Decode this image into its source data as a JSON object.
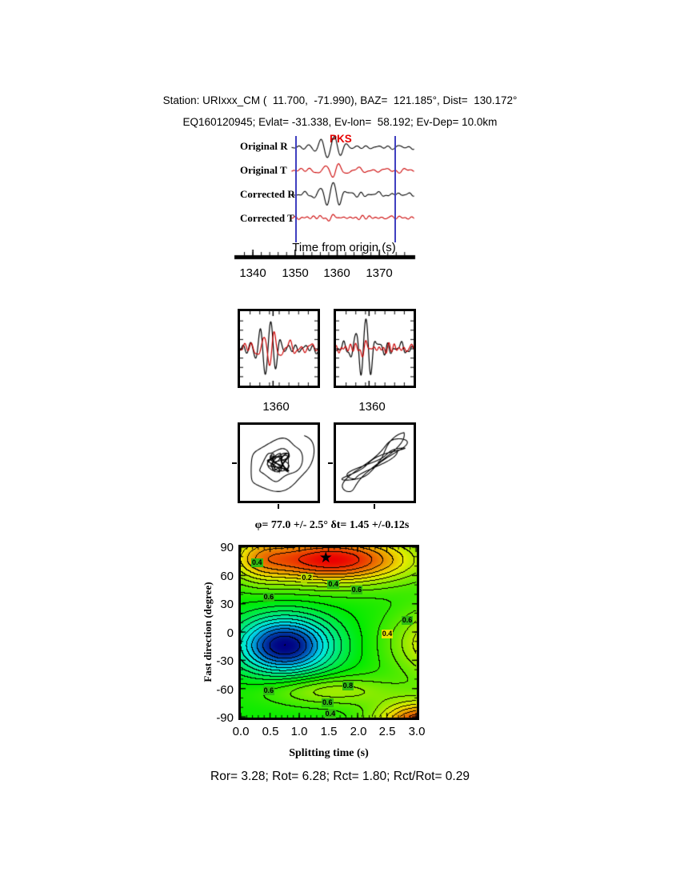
{
  "header": {
    "line1": "Station: URIxxx_CM (  11.700,  -71.990), BAZ=  121.185°, Dist=  130.172°",
    "line2": "EQ160120945; Evlat= -31.338, Ev-lon=  58.192; Ev-Dep= 10.0km"
  },
  "waveform_panel": {
    "trace_labels": [
      "Original R",
      "Original T",
      "Corrected R",
      "Corrected T"
    ],
    "phase_label": "PKS",
    "axis_title": "Time from origin (s)",
    "tick_labels": [
      "1340",
      "1350",
      "1360",
      "1370"
    ]
  },
  "zoom_panels": {
    "left_label": "1360",
    "right_label": "1360"
  },
  "contour_panel": {
    "title": "φ= 77.0 +/- 2.5° δt= 1.45 +/-0.12s",
    "xlabel": "Splitting time (s)",
    "ylabel": "Fast direction (degree)",
    "ytick_labels": [
      "90",
      "60",
      "30",
      "0",
      "-30",
      "-60",
      "-90"
    ],
    "xtick_labels": [
      "0.0",
      "0.5",
      "1.0",
      "1.5",
      "2.0",
      "2.5",
      "3.0"
    ]
  },
  "summary": "Ror= 3.28; Rot= 6.28; Rct= 1.80; Rct/Rot= 0.29",
  "colors": {
    "radial_trace": "#000000",
    "transverse_trace": "#cc0000",
    "window_line": "#4040c0",
    "phase_label": "#e60000"
  },
  "chart_data": [
    {
      "type": "line",
      "title": "PKS waveforms, radial and transverse, before and after splitting correction",
      "xlabel": "Time from origin (s)",
      "x_range": [
        1336,
        1378
      ],
      "x_ticks": [
        1340,
        1350,
        1360,
        1370
      ],
      "phase_arrival": 1358.5,
      "analysis_window": [
        1350,
        1373.5
      ],
      "series": [
        {
          "name": "Original R",
          "color": "#000000"
        },
        {
          "name": "Original T",
          "color": "#cc0000"
        },
        {
          "name": "Corrected R",
          "color": "#000000"
        },
        {
          "name": "Corrected T",
          "color": "#cc0000"
        }
      ],
      "annotations": [
        {
          "label": "PKS",
          "x": 1358.5,
          "color": "#e60000"
        }
      ]
    },
    {
      "type": "heatmap",
      "title": "φ= 77.0 +/- 2.5° δt= 1.45 +/-0.12s",
      "xlabel": "Splitting time (s)",
      "ylabel": "Fast direction (degree)",
      "x_range": [
        0,
        3
      ],
      "y_range": [
        -90,
        90
      ],
      "x_ticks": [
        0.0,
        0.5,
        1.0,
        1.5,
        2.0,
        2.5,
        3.0
      ],
      "y_ticks": [
        90,
        60,
        30,
        0,
        -30,
        -60,
        -90
      ],
      "best_solution": {
        "phi": 77.0,
        "phi_err": 2.5,
        "dt": 1.45,
        "dt_err": 0.12
      },
      "star": {
        "dt": 1.45,
        "phi": 77
      },
      "contour_levels": [
        0.2,
        0.4,
        0.6,
        0.8
      ],
      "contour_labels": [
        {
          "value": "0.4",
          "dt": 0.3,
          "phi": 73,
          "bg": "#2fbb12"
        },
        {
          "value": "0.2",
          "dt": 1.15,
          "phi": 57,
          "bg": "#bcd800"
        },
        {
          "value": "0.4",
          "dt": 1.6,
          "phi": 50,
          "bg": "#2fbb12"
        },
        {
          "value": "0.6",
          "dt": 2.0,
          "phi": 44,
          "bg": "#2fbb12"
        },
        {
          "value": "0.6",
          "dt": 0.5,
          "phi": 37,
          "bg": "#2fbb12"
        },
        {
          "value": "0.6",
          "dt": 2.86,
          "phi": 12,
          "bg": "#2fbb12"
        },
        {
          "value": "0.4",
          "dt": 2.52,
          "phi": -2,
          "bg": "#e8e400"
        },
        {
          "value": "0.6",
          "dt": 0.5,
          "phi": -62,
          "bg": "#2fbb12"
        },
        {
          "value": "0.8",
          "dt": 1.85,
          "phi": -57,
          "bg": "#2fbb12"
        },
        {
          "value": "0.6",
          "dt": 1.5,
          "phi": -75,
          "bg": "#2fbb12"
        },
        {
          "value": "0.4",
          "dt": 1.55,
          "phi": -87,
          "bg": "#2fbb12"
        }
      ]
    }
  ]
}
